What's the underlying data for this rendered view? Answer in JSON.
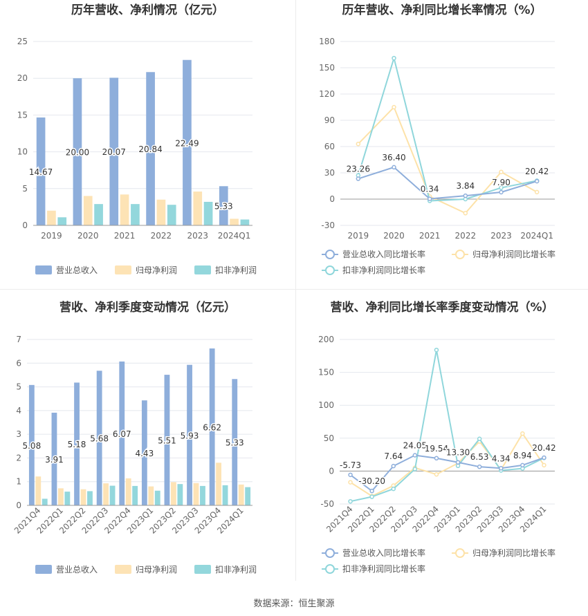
{
  "colors": {
    "revenue": "#8eaedb",
    "net_profit": "#fde3b5",
    "deducted_profit": "#93d7dc",
    "revenue_line": "#8eaedb",
    "net_line": "#fde2a8",
    "deducted_line": "#8fd6db",
    "grid": "#e4e7ee",
    "axis_text": "#666666",
    "title": "#333333"
  },
  "source_text": "数据来源：恒生聚源",
  "chart_data": [
    {
      "id": "annual-amounts",
      "type": "bar",
      "title": "历年营收、净利情况（亿元）",
      "categories": [
        "2019",
        "2020",
        "2021",
        "2022",
        "2023",
        "2024Q1"
      ],
      "ylim": [
        0,
        25
      ],
      "yticks": [
        0,
        5,
        10,
        15,
        20,
        25
      ],
      "ytick_labels": [
        "0",
        "5",
        "10",
        "15",
        "20",
        "25"
      ],
      "series": [
        {
          "name": "营业总收入",
          "values": [
            14.67,
            20.0,
            20.07,
            20.84,
            22.49,
            5.33
          ],
          "labels": [
            "14.67",
            "20.00",
            "20.07",
            "20.84",
            "22.49",
            "5.33"
          ]
        },
        {
          "name": "归母净利润",
          "values": [
            2.0,
            4.0,
            4.2,
            3.5,
            4.6,
            0.9
          ]
        },
        {
          "name": "扣非净利润",
          "values": [
            1.1,
            2.9,
            2.9,
            2.8,
            3.2,
            0.8
          ]
        }
      ],
      "legend": [
        "营业总收入",
        "归母净利润",
        "扣非净利润"
      ],
      "legend_position": "bottom"
    },
    {
      "id": "annual-growth",
      "type": "line",
      "title": "历年营收、净利同比增长率情况（%）",
      "categories": [
        "2019",
        "2020",
        "2021",
        "2022",
        "2023",
        "2024Q1"
      ],
      "ylim": [
        -30,
        180
      ],
      "yticks": [
        -30,
        0,
        30,
        60,
        90,
        120,
        150,
        180
      ],
      "ytick_labels": [
        "-30",
        "0",
        "30",
        "60",
        "90",
        "120",
        "150",
        "180"
      ],
      "series": [
        {
          "name": "营业总收入同比增长率",
          "values": [
            23.26,
            36.4,
            0.34,
            3.84,
            7.9,
            20.42
          ],
          "labels": [
            "23.26",
            "36.40",
            "0.34",
            "3.84",
            "7.90",
            "20.42"
          ]
        },
        {
          "name": "归母净利润同比增长率",
          "values": [
            63,
            105,
            3,
            -16,
            31,
            8
          ]
        },
        {
          "name": "扣非净利润同比增长率",
          "values": [
            27,
            161,
            -2,
            0,
            13,
            21
          ]
        }
      ],
      "legend": [
        "营业总收入同比增长率",
        "归母净利润同比增长率",
        "扣非净利润同比增长率"
      ],
      "legend_position": "bottom"
    },
    {
      "id": "quarterly-amounts",
      "type": "bar",
      "title": "营收、净利季度变动情况（亿元）",
      "categories": [
        "2021Q4",
        "2022Q1",
        "2022Q2",
        "2022Q3",
        "2022Q4",
        "2023Q1",
        "2023Q2",
        "2023Q3",
        "2023Q4",
        "2024Q1"
      ],
      "ylim": [
        0,
        7
      ],
      "yticks": [
        0,
        1,
        2,
        3,
        4,
        5,
        6,
        7
      ],
      "ytick_labels": [
        "0",
        "1",
        "2",
        "3",
        "4",
        "5",
        "6",
        "7"
      ],
      "series": [
        {
          "name": "营业总收入",
          "values": [
            5.08,
            3.91,
            5.18,
            5.68,
            6.07,
            4.43,
            5.51,
            5.93,
            6.62,
            5.33
          ],
          "labels": [
            "5.08",
            "3.91",
            "5.18",
            "5.68",
            "6.07",
            "4.43",
            "5.51",
            "5.93",
            "6.62",
            "5.33"
          ]
        },
        {
          "name": "归母净利润",
          "values": [
            1.22,
            0.72,
            0.68,
            0.93,
            1.14,
            0.8,
            0.98,
            0.94,
            1.8,
            0.88
          ]
        },
        {
          "name": "扣非净利润",
          "values": [
            0.28,
            0.58,
            0.6,
            0.83,
            0.82,
            0.62,
            0.9,
            0.82,
            0.85,
            0.77
          ]
        }
      ],
      "legend": [
        "营业总收入",
        "归母净利润",
        "扣非净利润"
      ],
      "legend_position": "bottom"
    },
    {
      "id": "quarterly-growth",
      "type": "line",
      "title": "营收、净利同比增长率季度变动情况（%）",
      "categories": [
        "2021Q4",
        "2022Q1",
        "2022Q2",
        "2022Q3",
        "2022Q4",
        "2023Q1",
        "2023Q2",
        "2023Q3",
        "2023Q4",
        "2024Q1"
      ],
      "ylim": [
        -50,
        200
      ],
      "yticks": [
        -50,
        0,
        50,
        100,
        150,
        200
      ],
      "ytick_labels": [
        "-50",
        "0",
        "50",
        "100",
        "150",
        "200"
      ],
      "series": [
        {
          "name": "营业总收入同比增长率",
          "values": [
            -5.73,
            -30.2,
            7.64,
            24.05,
            19.54,
            13.3,
            6.53,
            4.34,
            8.94,
            20.42
          ],
          "labels": [
            "-5.73",
            "-30.20",
            "7.64",
            "24.05",
            "19.54",
            "13.30",
            "6.53",
            "4.34",
            "8.94",
            "20.42"
          ]
        },
        {
          "name": "归母净利润同比增长率",
          "values": [
            -17,
            -38,
            -22,
            5,
            -5,
            12,
            45,
            2,
            57,
            9
          ]
        },
        {
          "name": "扣非净利润同比增长率",
          "values": [
            -46,
            -39,
            -27,
            3,
            184,
            8,
            49,
            1,
            4,
            20
          ]
        }
      ],
      "legend": [
        "营业总收入同比增长率",
        "归母净利润同比增长率",
        "扣非净利润同比增长率"
      ],
      "legend_position": "bottom"
    }
  ]
}
